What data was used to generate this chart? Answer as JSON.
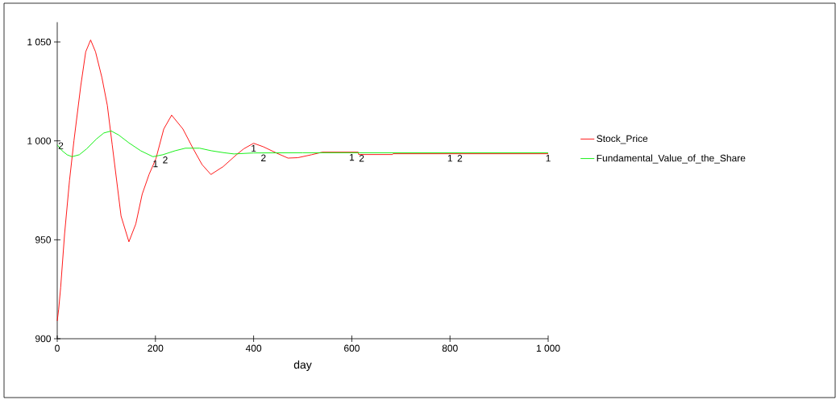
{
  "chart_data": {
    "type": "line",
    "xlabel": "day",
    "xlim": [
      0,
      1000
    ],
    "ylim": [
      900,
      1060
    ],
    "xticks": [
      0,
      200,
      400,
      600,
      800,
      {
        "value": 1000,
        "label": "1 000"
      }
    ],
    "yticks": [
      900,
      950,
      {
        "value": 1000,
        "label": "1 000"
      },
      {
        "value": 1050,
        "label": "1 050"
      }
    ],
    "grid": false,
    "legend": "right",
    "series": [
      {
        "name": "Stock_Price",
        "color": "#ff0000",
        "x": [
          0,
          3,
          7,
          15,
          25,
          34,
          48,
          58,
          68,
          78,
          91,
          102,
          112,
          130,
          146,
          160,
          173,
          187,
          201,
          217,
          233,
          256,
          277,
          295,
          313,
          338,
          365,
          380,
          400,
          420,
          447,
          470,
          490,
          518,
          540,
          613,
          614,
          683,
          684,
          1000
        ],
        "values": [
          909,
          915,
          926,
          953,
          980,
          1000,
          1028,
          1045,
          1051,
          1045,
          1032,
          1018,
          998,
          962,
          949,
          958,
          973,
          983,
          991,
          1006,
          1013,
          1006,
          996,
          988,
          983,
          987,
          993,
          996,
          998.8,
          997,
          993.8,
          991.3,
          991.5,
          993,
          994.3,
          994.3,
          993.1,
          993.1,
          993.5,
          993.5
        ]
      },
      {
        "name": "Fundamental_Value_of_the_Share",
        "color": "#00ee00",
        "x": [
          0,
          10,
          20,
          30,
          45,
          60,
          80,
          95,
          110,
          125,
          146,
          170,
          195,
          215,
          240,
          261,
          290,
          314,
          340,
          360,
          400,
          500,
          1000
        ],
        "values": [
          998,
          995,
          993,
          992,
          993,
          996,
          1001,
          1004,
          1005,
          1003,
          999,
          995,
          992,
          993,
          995,
          996.3,
          996.3,
          995,
          994,
          993.4,
          993.9,
          994,
          994
        ]
      }
    ],
    "annotations": [
      {
        "text": "1",
        "x": 200,
        "y": 991
      },
      {
        "text": "2",
        "x": 220,
        "y": 993
      },
      {
        "text": "1",
        "x": 400,
        "y": 998.8
      },
      {
        "text": "2",
        "x": 420,
        "y": 994
      },
      {
        "text": "1",
        "x": 600,
        "y": 994.3
      },
      {
        "text": "2",
        "x": 620,
        "y": 993.8
      },
      {
        "text": "1",
        "x": 800,
        "y": 993.8
      },
      {
        "text": "2",
        "x": 820,
        "y": 993.8
      },
      {
        "text": "1",
        "x": 1000,
        "y": 993.8
      },
      {
        "text": "2",
        "x": 0,
        "y": 998
      }
    ]
  }
}
